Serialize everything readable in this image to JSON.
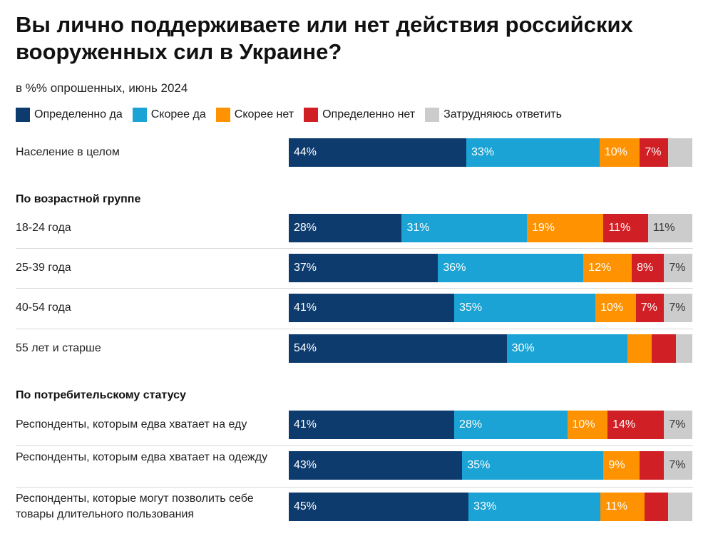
{
  "chart_data": {
    "type": "bar",
    "orientation": "horizontal",
    "stacked": true,
    "title": "Вы лично поддерживаете или нет действия российских вооруженных сил в Украине?",
    "subtitle": "в %% опрошенных, июнь 2024",
    "legend_position": "top",
    "series": [
      {
        "name": "Определенно да",
        "color": "#0d3b6e",
        "label_color": "#ffffff"
      },
      {
        "name": "Скорее да",
        "color": "#1aa3d4",
        "label_color": "#ffffff"
      },
      {
        "name": "Скорее нет",
        "color": "#ff9200",
        "label_color": "#ffffff"
      },
      {
        "name": "Определенно нет",
        "color": "#d11f26",
        "label_color": "#ffffff"
      },
      {
        "name": "Затрудняюсь ответить",
        "color": "#cccccc",
        "label_color": "#333333"
      }
    ],
    "groups": [
      {
        "heading": "",
        "rows": [
          {
            "label": "Население в целом",
            "values": [
              44,
              33,
              10,
              7,
              6
            ],
            "labels": [
              "44%",
              "33%",
              "10%",
              "7%",
              ""
            ]
          }
        ]
      },
      {
        "heading": "По возрастной группе",
        "rows": [
          {
            "label": "18-24 года",
            "values": [
              28,
              31,
              19,
              11,
              11
            ],
            "labels": [
              "28%",
              "31%",
              "19%",
              "11%",
              "11%"
            ]
          },
          {
            "label": "25-39 года",
            "values": [
              37,
              36,
              12,
              8,
              7
            ],
            "labels": [
              "37%",
              "36%",
              "12%",
              "8%",
              "7%"
            ]
          },
          {
            "label": "40-54 года",
            "values": [
              41,
              35,
              10,
              7,
              7
            ],
            "labels": [
              "41%",
              "35%",
              "10%",
              "7%",
              "7%"
            ]
          },
          {
            "label": "55 лет и старше",
            "values": [
              54,
              30,
              6,
              6,
              4
            ],
            "labels": [
              "54%",
              "30%",
              "",
              "",
              ""
            ]
          }
        ]
      },
      {
        "heading": "По потребительскому статусу",
        "rows": [
          {
            "label": "Респонденты, которым едва хватает на еду",
            "values": [
              41,
              28,
              10,
              14,
              7
            ],
            "labels": [
              "41%",
              "28%",
              "10%",
              "14%",
              "7%"
            ]
          },
          {
            "label": "Респонденты, которым едва хватает на одежду",
            "values": [
              43,
              35,
              9,
              6,
              7
            ],
            "labels": [
              "43%",
              "35%",
              "9%",
              "",
              "7%"
            ]
          },
          {
            "label": "Респонденты, которые могут позволить себе товары длительного пользования",
            "values": [
              45,
              33,
              11,
              6,
              6
            ],
            "labels": [
              "45%",
              "33%",
              "11%",
              "",
              ""
            ]
          }
        ]
      }
    ]
  }
}
